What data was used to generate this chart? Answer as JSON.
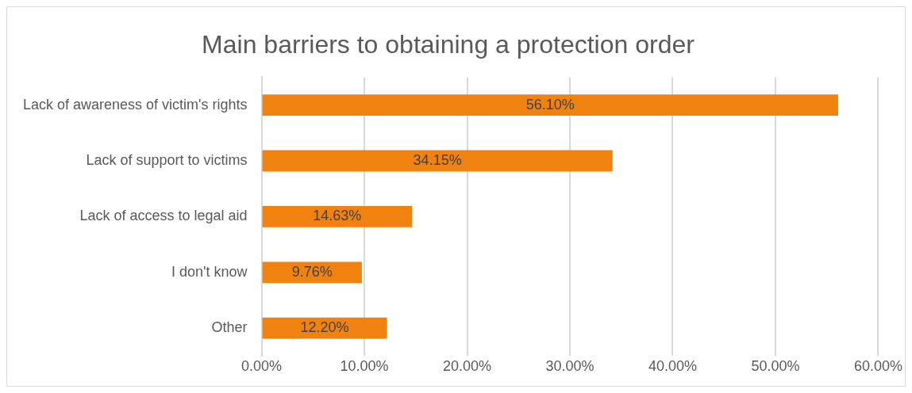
{
  "chart_data": {
    "type": "bar",
    "orientation": "horizontal",
    "title": "Main barriers to obtaining a protection order",
    "categories": [
      "Lack of awareness of victim's rights",
      "Lack of support to victims",
      "Lack of access to legal aid",
      "I don't know",
      "Other"
    ],
    "values": [
      56.1,
      34.15,
      14.63,
      9.76,
      12.2
    ],
    "value_labels": [
      "56.10%",
      "34.15%",
      "14.63%",
      "9.76%",
      "12.20%"
    ],
    "color": "#f0820f",
    "xlim": [
      0,
      60
    ],
    "xticks": [
      {
        "value": 0,
        "label": "0.00%"
      },
      {
        "value": 10,
        "label": "10.00%"
      },
      {
        "value": 20,
        "label": "20.00%"
      },
      {
        "value": 30,
        "label": "30.00%"
      },
      {
        "value": 40,
        "label": "40.00%"
      },
      {
        "value": 50,
        "label": "50.00%"
      },
      {
        "value": 60,
        "label": "60.00%"
      }
    ],
    "grid": "x"
  }
}
